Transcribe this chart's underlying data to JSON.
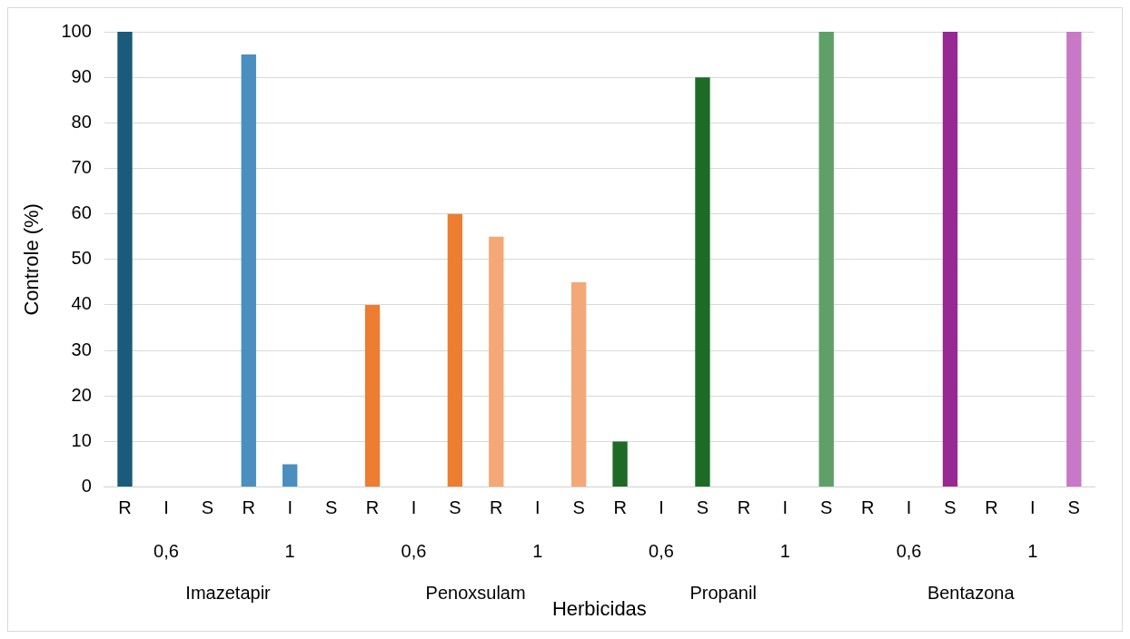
{
  "chart_data": {
    "type": "bar",
    "xlabel": "Herbicidas",
    "ylabel": "Controle (%)",
    "categories": [
      "R",
      "I",
      "S",
      "R",
      "I",
      "S",
      "R",
      "I",
      "S",
      "R",
      "I",
      "S",
      "R",
      "I",
      "S",
      "R",
      "I",
      "S",
      "R",
      "I",
      "S",
      "R",
      "I",
      "S"
    ],
    "values": [
      100,
      0,
      0,
      95,
      5,
      0,
      40,
      0,
      60,
      55,
      0,
      45,
      10,
      0,
      90,
      0,
      0,
      100,
      0,
      0,
      100,
      0,
      0,
      100
    ],
    "colors": [
      "#1a5a7a",
      "#1a5a7a",
      "#1a5a7a",
      "#4a8fbf",
      "#4a8fbf",
      "#4a8fbf",
      "#ed7d31",
      "#ed7d31",
      "#ed7d31",
      "#f5a877",
      "#f5a877",
      "#f5a877",
      "#1e6b26",
      "#1e6b26",
      "#1e6b26",
      "#5fa068",
      "#5fa068",
      "#5fa068",
      "#982894",
      "#982894",
      "#982894",
      "#c878c4",
      "#c878c4",
      "#c878c4"
    ],
    "ylim": [
      0,
      100
    ],
    "yticks": [
      0,
      10,
      20,
      30,
      40,
      50,
      60,
      70,
      80,
      90,
      100
    ],
    "grid": "y",
    "legend": false,
    "annotations": [
      "0,6",
      "1",
      "0,6",
      "1",
      "0,6",
      "1",
      "0,6",
      "1",
      "Imazetapir",
      "Penoxsulam",
      "Propanil",
      "Bentazona"
    ]
  }
}
